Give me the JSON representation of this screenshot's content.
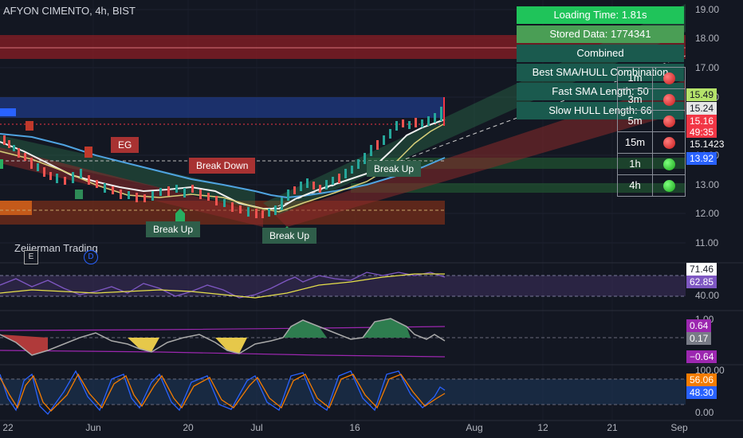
{
  "header": {
    "title": "AFYON CIMENTO, 4h, BIST"
  },
  "info_panel": [
    {
      "label": "Loading Time: 1.81s",
      "bg": "#1fc45a"
    },
    {
      "label": "Stored Data: 1774341",
      "bg": "#4a9e55"
    },
    {
      "label": "Combined",
      "bg": "#1a5a4e"
    },
    {
      "label": "Best SMA/HULL Combination",
      "bg": "#1a5a4e"
    },
    {
      "label": "Fast SMA Length: 50",
      "bg": "#1a5a4e"
    },
    {
      "label": "Slow HULL Length: 66",
      "bg": "#1a5a4e"
    }
  ],
  "timeframes": [
    {
      "label": "1m",
      "status": "red"
    },
    {
      "label": "3m",
      "status": "red"
    },
    {
      "label": "5m",
      "status": "red"
    },
    {
      "label": "15m",
      "status": "red"
    },
    {
      "label": "1h",
      "status": "green"
    },
    {
      "label": "4h",
      "status": "green"
    }
  ],
  "price_axis": [
    "19.00",
    "18.00",
    "17.00",
    "16.00",
    "14.00",
    "13.00",
    "12.00",
    "11.00"
  ],
  "price_labels": [
    {
      "text": "15.49",
      "bg": "#b5e36a",
      "fg": "#131722"
    },
    {
      "text": "15.24",
      "bg": "#e6e6e6",
      "fg": "#131722"
    },
    {
      "text": "15.16",
      "bg": "#f23645",
      "fg": "#ffffff"
    },
    {
      "text": "49:35",
      "bg": "#f23645",
      "fg": "#ffffff"
    },
    {
      "text": "15.1423",
      "bg": "#131722",
      "fg": "#ffffff"
    },
    {
      "text": "13.92",
      "bg": "#2962ff",
      "fg": "#ffffff"
    }
  ],
  "rsi_axis": [
    "40.00"
  ],
  "rsi_labels": [
    {
      "text": "71.46",
      "bg": "#ffffff",
      "fg": "#131722"
    },
    {
      "text": "62.85",
      "bg": "#7e57c2",
      "fg": "#ffffff"
    }
  ],
  "osc_axis": [
    "1.00"
  ],
  "osc_labels": [
    {
      "text": "0.64",
      "bg": "#9c27b0",
      "fg": "#ffffff"
    },
    {
      "text": "0.17",
      "bg": "#787b86",
      "fg": "#ffffff"
    },
    {
      "text": "−0.64",
      "bg": "#9c27b0",
      "fg": "#ffffff"
    }
  ],
  "stoch_axis": [
    "100.00",
    "0.00"
  ],
  "stoch_labels": [
    {
      "text": "56.06",
      "bg": "#f57c00",
      "fg": "#ffffff"
    },
    {
      "text": "48.30",
      "bg": "#2962ff",
      "fg": "#ffffff"
    }
  ],
  "x_axis": [
    "22",
    "Jun",
    "20",
    "Jul",
    "16",
    "Aug",
    "12",
    "21",
    "Sep"
  ],
  "annotations": {
    "eg": "EG",
    "break_down": "Break Down",
    "break_up_1": "Break Up",
    "break_up_2": "Break Up",
    "break_up_3": "Break Up"
  },
  "watermark": {
    "text": "Zeiierman Trading",
    "badge_e": "E",
    "badge_d": "D"
  },
  "colors": {
    "background": "#131722",
    "up": "#26a69a",
    "down": "#ef5350",
    "fast_sma": "#e8e8a0",
    "slow_hull": "#4fa3e0",
    "rsi_line": "#7e57c2",
    "rsi_ma": "#e6e04a"
  }
}
